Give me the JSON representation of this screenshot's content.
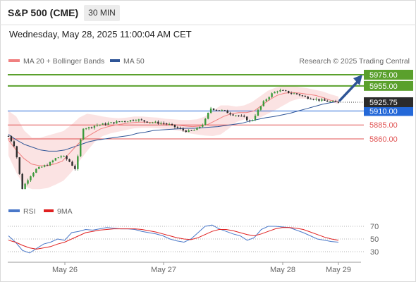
{
  "header": {
    "title": "S&P 500 (CME)",
    "timeframe": "30 MIN",
    "datetime": "Wednesday, May 28, 2025 11:00:04 AM CET"
  },
  "chart_data": [
    {
      "type": "candlestick",
      "legend": [
        {
          "name": "MA 20 + Bollinger Bands",
          "color": "#f08080"
        },
        {
          "name": "MA 50",
          "color": "#2f5597"
        }
      ],
      "credit": "Research © 2025 Trading Central",
      "x_ticks": [
        "May 26",
        "May 27",
        "May 28",
        "May 29"
      ],
      "last_price": "5925.75",
      "levels": [
        {
          "value": 5975.0,
          "label": "5975.00",
          "kind": "resistance",
          "color": "#5aa02c"
        },
        {
          "value": 5955.0,
          "label": "5955.00",
          "kind": "resistance",
          "color": "#5aa02c"
        },
        {
          "value": 5910.0,
          "label": "5910.00",
          "kind": "pivot",
          "color": "#2468d8"
        },
        {
          "value": 5885.0,
          "label": "5885.00",
          "kind": "support",
          "color": "#e05252"
        },
        {
          "value": 5860.0,
          "label": "5860.00",
          "kind": "support",
          "color": "#e05252"
        }
      ],
      "forecast_arrow": {
        "direction": "up",
        "color": "#2f5597"
      },
      "approx_price_path": [
        5865,
        5845,
        5770,
        5790,
        5805,
        5810,
        5815,
        5825,
        5830,
        5820,
        5805,
        5880,
        5880,
        5885,
        5886,
        5888,
        5890,
        5892,
        5893,
        5895,
        5892,
        5890,
        5889,
        5888,
        5885,
        5880,
        5875,
        5873,
        5878,
        5888,
        5915,
        5912,
        5910,
        5905,
        5902,
        5898,
        5890,
        5910,
        5928,
        5940,
        5947,
        5945,
        5942,
        5940,
        5935,
        5933,
        5930,
        5928,
        5926,
        5925.75
      ],
      "approx_ma50_path": [
        5868,
        5858,
        5850,
        5845,
        5840,
        5838,
        5838,
        5840,
        5845,
        5850,
        5855,
        5858,
        5860,
        5862,
        5864,
        5866,
        5870,
        5872,
        5875,
        5876,
        5877,
        5878,
        5879,
        5879,
        5880,
        5881,
        5882,
        5884,
        5886,
        5888,
        5892,
        5895,
        5898,
        5900,
        5903,
        5906,
        5910,
        5914,
        5918,
        5922,
        5925,
        5927
      ],
      "approx_ma20_path": [
        5858,
        5840,
        5825,
        5815,
        5812,
        5812,
        5815,
        5820,
        5835,
        5850,
        5862,
        5870,
        5878,
        5882,
        5885,
        5887,
        5889,
        5890,
        5890,
        5889,
        5887,
        5886,
        5885,
        5883,
        5882,
        5883,
        5886,
        5893,
        5900,
        5905,
        5907,
        5907,
        5910,
        5920,
        5930,
        5938,
        5942,
        5943,
        5942,
        5940,
        5938,
        5934,
        5929,
        5926
      ],
      "approx_bb_upper": [
        5910,
        5900,
        5875,
        5862,
        5862,
        5866,
        5870,
        5874,
        5885,
        5898,
        5905,
        5903,
        5900,
        5898,
        5897,
        5898,
        5900,
        5900,
        5899,
        5898,
        5896,
        5895,
        5894,
        5894,
        5895,
        5900,
        5910,
        5920,
        5920,
        5918,
        5920,
        5926,
        5936,
        5946,
        5952,
        5955,
        5955,
        5953,
        5951,
        5948,
        5945,
        5940,
        5936
      ],
      "approx_bb_lower": [
        5830,
        5800,
        5775,
        5770,
        5770,
        5772,
        5778,
        5785,
        5800,
        5820,
        5838,
        5855,
        5865,
        5870,
        5873,
        5876,
        5879,
        5880,
        5880,
        5879,
        5878,
        5876,
        5874,
        5870,
        5868,
        5866,
        5865,
        5868,
        5878,
        5890,
        5895,
        5895,
        5898,
        5905,
        5912,
        5920,
        5928,
        5932,
        5932,
        5930,
        5929,
        5927,
        5922
      ]
    },
    {
      "type": "line",
      "legend": [
        {
          "name": "RSI",
          "color": "#4a78c9"
        },
        {
          "name": "9MA",
          "color": "#e02020"
        }
      ],
      "y_ticks": [
        70,
        50,
        30
      ],
      "ylim": [
        15,
        85
      ],
      "rsi_values": [
        55,
        45,
        32,
        28,
        35,
        42,
        45,
        50,
        48,
        60,
        62,
        65,
        64,
        66,
        68,
        67,
        66,
        66,
        65,
        62,
        60,
        58,
        55,
        50,
        47,
        45,
        50,
        60,
        70,
        72,
        66,
        62,
        58,
        55,
        48,
        52,
        65,
        70,
        70,
        69,
        68,
        64,
        60,
        55,
        50,
        48,
        46,
        45
      ],
      "ma9_values": [
        48,
        45,
        40,
        36,
        34,
        36,
        38,
        42,
        45,
        50,
        55,
        60,
        62,
        64,
        65,
        66,
        66,
        66,
        66,
        65,
        63,
        61,
        58,
        55,
        52,
        50,
        49,
        52,
        57,
        62,
        65,
        65,
        63,
        60,
        57,
        55,
        58,
        62,
        66,
        68,
        68,
        67,
        65,
        61,
        57,
        53,
        50,
        48
      ]
    }
  ]
}
